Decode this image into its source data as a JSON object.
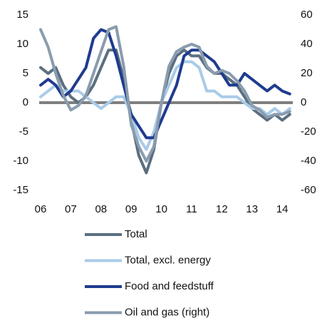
{
  "chart_data": {
    "type": "line",
    "x": [
      2006,
      2006.25,
      2006.5,
      2006.75,
      2007,
      2007.25,
      2007.5,
      2007.75,
      2008,
      2008.25,
      2008.5,
      2008.75,
      2009,
      2009.25,
      2009.5,
      2009.75,
      2010,
      2010.25,
      2010.5,
      2010.75,
      2011,
      2011.25,
      2011.5,
      2011.75,
      2012,
      2012.25,
      2012.5,
      2012.75,
      2013,
      2013.25,
      2013.5,
      2013.75,
      2014,
      2014.25
    ],
    "series": [
      {
        "name": "Total",
        "color": "#5b6f80",
        "values": [
          6,
          5,
          6,
          3,
          1,
          0,
          1,
          3,
          6,
          9,
          9,
          4,
          -3,
          -9,
          -12,
          -8,
          0,
          5,
          8,
          9,
          8,
          8,
          6,
          5,
          5,
          4,
          3,
          1,
          -1,
          -2,
          -3,
          -2,
          -3,
          -2
        ]
      },
      {
        "name": "Total, excl. energy",
        "color": "#a9cbe8",
        "values": [
          1,
          2,
          3,
          2,
          2,
          2,
          1,
          0,
          -1,
          0,
          1,
          1,
          -2,
          -6,
          -8,
          -5,
          0,
          3,
          6,
          7,
          7,
          6,
          2,
          2,
          1,
          1,
          1,
          0,
          -1,
          -1,
          -2,
          -1,
          -2,
          -1
        ]
      },
      {
        "name": "Food and feedstuff",
        "color": "#1f3b8f",
        "values": [
          3,
          4,
          3,
          1,
          2,
          4,
          6,
          11,
          12.5,
          12,
          8,
          3,
          -2,
          -4,
          -6,
          -6,
          -3,
          0,
          3,
          8,
          9,
          9,
          8,
          7,
          5,
          3,
          3,
          5,
          4,
          3,
          2,
          3,
          2,
          1.5
        ]
      },
      {
        "name": "Oil and gas (right)",
        "color": "#8a9cae",
        "axis": "y2",
        "values": [
          50,
          38,
          20,
          5,
          -5,
          -2,
          5,
          20,
          35,
          50,
          52,
          25,
          -15,
          -30,
          -40,
          -30,
          0,
          25,
          35,
          38,
          40,
          38,
          25,
          20,
          22,
          20,
          15,
          8,
          -2,
          -5,
          -10,
          -8,
          -8,
          -6
        ]
      }
    ],
    "xlim": [
      2006,
      2014.35
    ],
    "xticks": [
      {
        "value": 2006,
        "label": "06"
      },
      {
        "value": 2007,
        "label": "07"
      },
      {
        "value": 2008,
        "label": "08"
      },
      {
        "value": 2009,
        "label": "09"
      },
      {
        "value": 2010,
        "label": "10"
      },
      {
        "value": 2011,
        "label": "11"
      },
      {
        "value": 2012,
        "label": "12"
      },
      {
        "value": 2013,
        "label": "13"
      },
      {
        "value": 2014,
        "label": "14"
      }
    ],
    "ylim": [
      -15,
      15
    ],
    "yticks": [
      -15,
      -10,
      -5,
      0,
      5,
      10,
      15
    ],
    "y2lim": [
      -60,
      60
    ],
    "y2ticks": [
      -60,
      -40,
      -20,
      0,
      20,
      40,
      60
    ],
    "legend": "bottom"
  }
}
